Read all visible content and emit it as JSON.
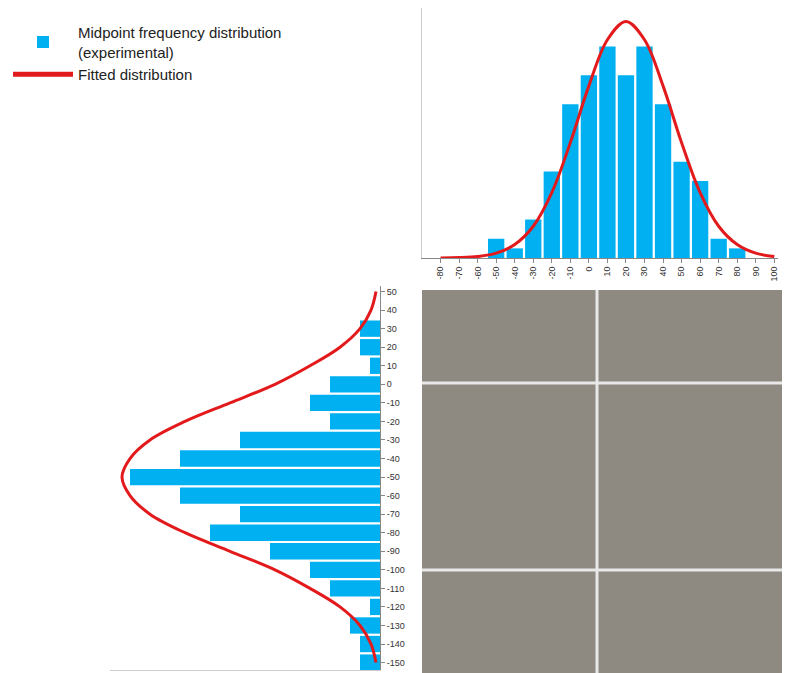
{
  "chart_data": [
    {
      "type": "bar",
      "x": [
        -50,
        -40,
        -30,
        -20,
        -10,
        0,
        10,
        20,
        30,
        40,
        50,
        60,
        70,
        80
      ],
      "series": [
        {
          "name": "Midpoint frequency distribution (experimental)",
          "type": "bar",
          "color": "#00b0f0",
          "values": [
            2,
            1,
            4,
            9,
            16,
            19,
            22,
            19,
            22,
            16,
            10,
            8,
            2,
            1
          ]
        },
        {
          "name": "Fitted distribution",
          "type": "line",
          "color": "#e31a1c",
          "x": [
            -80,
            -70,
            -60,
            -50,
            -40,
            -30,
            -20,
            -10,
            0,
            10,
            20,
            30,
            40,
            50,
            60,
            70,
            80,
            90,
            100
          ],
          "values": [
            0.01,
            0.04,
            0.15,
            0.5,
            1.4,
            3.3,
            6.8,
            12.0,
            17.9,
            22.7,
            24.6,
            22.7,
            17.9,
            12.0,
            6.8,
            3.3,
            1.4,
            0.5,
            0.15
          ]
        }
      ],
      "xlim": [
        -90,
        102
      ],
      "xticks": [
        -80,
        -70,
        -60,
        -50,
        -40,
        -30,
        -20,
        -10,
        0,
        10,
        20,
        30,
        40,
        50,
        60,
        70,
        80,
        90,
        100
      ],
      "ylim": [
        0,
        26
      ],
      "tick_labels": "x",
      "grid": false,
      "legend": "top left"
    },
    {
      "type": "bar",
      "orientation": "horizontal",
      "x": [
        30,
        20,
        10,
        0,
        -10,
        -20,
        -30,
        -40,
        -50,
        -60,
        -70,
        -80,
        -90,
        -100,
        -110,
        -120,
        -130,
        -140,
        -150
      ],
      "series": [
        {
          "name": "Midpoint frequency distribution (experimental)",
          "type": "bar",
          "color": "#00b0f0",
          "values": [
            2,
            2,
            1,
            5,
            7,
            5,
            14,
            20,
            25,
            20,
            14,
            17,
            11,
            7,
            5,
            1,
            3,
            2,
            2
          ]
        },
        {
          "name": "Fitted distribution",
          "type": "line",
          "color": "#e31a1c",
          "x": [
            50,
            40,
            30,
            20,
            10,
            0,
            -10,
            -20,
            -30,
            -40,
            -50,
            -60,
            -70,
            -80,
            -90,
            -100,
            -110,
            -120,
            -130,
            -140,
            -150
          ],
          "values": [
            0.4,
            0.9,
            2.0,
            4.0,
            7.0,
            10.5,
            15,
            19.5,
            23,
            25,
            25.8,
            25,
            23,
            19.5,
            15,
            10.5,
            7,
            4,
            2,
            0.9,
            0.4
          ]
        }
      ],
      "xlim": [
        -154,
        53
      ],
      "xticks": [
        50,
        40,
        30,
        20,
        10,
        0,
        -10,
        -20,
        -30,
        -40,
        -50,
        -60,
        -70,
        -80,
        -90,
        -100,
        -110,
        -120,
        -130,
        -140,
        -150
      ],
      "ylim": [
        27,
        0
      ],
      "tick_labels": "x",
      "grid": false
    }
  ]
}
